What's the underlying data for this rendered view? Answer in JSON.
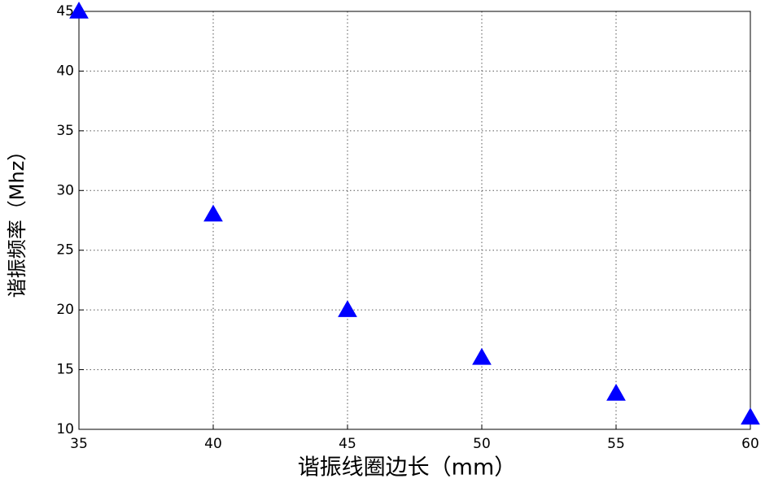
{
  "chart_data": {
    "type": "line",
    "x_label": "谐振线圈边长（mm）",
    "y_label": "谐振频率（Mhz）",
    "x": [
      35,
      40,
      45,
      50,
      55,
      60
    ],
    "values": [
      45,
      28,
      20,
      16,
      13,
      11
    ],
    "color": "#0000ff",
    "marker": "triangle",
    "xlim": [
      35,
      60
    ],
    "xticks": [
      35,
      40,
      45,
      50,
      55,
      60
    ],
    "ylim": [
      10,
      45
    ],
    "yticks": [
      10,
      15,
      20,
      25,
      30,
      35,
      40,
      45
    ],
    "grid": true
  }
}
